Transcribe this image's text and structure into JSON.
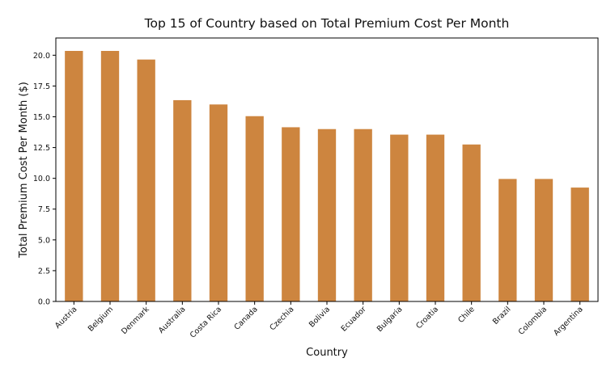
{
  "chart_data": {
    "type": "bar",
    "title": "Top 15 of Country based on Total Premium Cost Per Month",
    "xlabel": "Country",
    "ylabel": "Total Premium Cost Per Month ($)",
    "categories": [
      "Austria",
      "Belgium",
      "Denmark",
      "Australia",
      "Costa Rica",
      "Canada",
      "Czechia",
      "Bolivia",
      "Ecuador",
      "Bulgaria",
      "Croatia",
      "Chile",
      "Brazil",
      "Colombia",
      "Argentina"
    ],
    "values": [
      20.35,
      20.35,
      19.65,
      16.35,
      16.0,
      15.05,
      14.15,
      14.0,
      14.0,
      13.55,
      13.55,
      12.75,
      9.95,
      9.95,
      9.25
    ],
    "yticks": [
      "0.0",
      "2.5",
      "5.0",
      "7.5",
      "10.0",
      "12.5",
      "15.0",
      "17.5",
      "20.0"
    ],
    "ylim": [
      0,
      21.4
    ],
    "grid": false,
    "bar_color": "#cd853f"
  }
}
